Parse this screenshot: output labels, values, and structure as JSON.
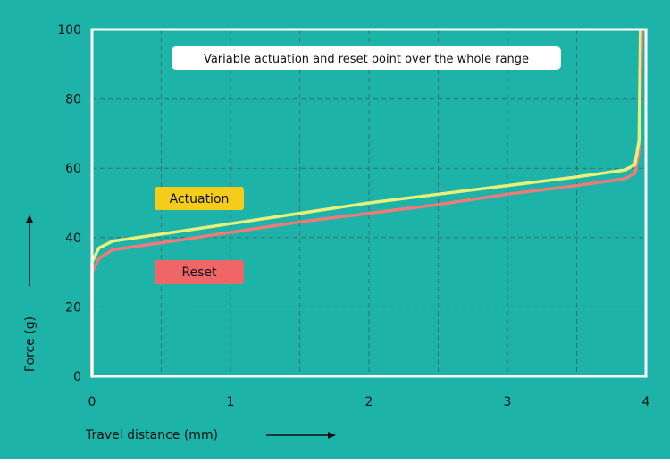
{
  "chart_data": {
    "type": "line",
    "title": "Variable actuation and reset point over the whole range",
    "xlabel": "Travel distance (mm)",
    "ylabel": "Force (g)",
    "xlim": [
      0,
      4
    ],
    "ylim": [
      0,
      100
    ],
    "xticks": [
      0,
      1,
      2,
      3,
      4
    ],
    "yticks": [
      0,
      20,
      40,
      60,
      80,
      100
    ],
    "grid": true,
    "series": [
      {
        "name": "Actuation",
        "color": "#e8f07a",
        "label_bg": "#f5cc1a",
        "points": [
          [
            0.0,
            0
          ],
          [
            0.0,
            33
          ],
          [
            0.05,
            37
          ],
          [
            0.15,
            39
          ],
          [
            0.5,
            41
          ],
          [
            1.0,
            44
          ],
          [
            1.5,
            47
          ],
          [
            2.0,
            50
          ],
          [
            2.5,
            52.5
          ],
          [
            3.0,
            55
          ],
          [
            3.5,
            57.5
          ],
          [
            3.85,
            59.5
          ],
          [
            3.92,
            61
          ],
          [
            3.95,
            68
          ],
          [
            3.96,
            100
          ]
        ]
      },
      {
        "name": "Reset",
        "color": "#f07a7a",
        "label_bg": "#f06666",
        "points": [
          [
            0.0,
            0
          ],
          [
            0.0,
            30
          ],
          [
            0.05,
            34
          ],
          [
            0.15,
            36.5
          ],
          [
            0.5,
            38.5
          ],
          [
            1.0,
            41.5
          ],
          [
            1.5,
            44.5
          ],
          [
            2.0,
            47
          ],
          [
            2.5,
            49.5
          ],
          [
            3.0,
            52.5
          ],
          [
            3.5,
            55
          ],
          [
            3.85,
            57
          ],
          [
            3.92,
            58.5
          ],
          [
            3.95,
            65
          ],
          [
            3.97,
            100
          ]
        ]
      }
    ]
  },
  "colors": {
    "background": "#1db3a8",
    "plot_border": "#ffffff",
    "gridline": "#3b6f6b",
    "text": "#111111",
    "title_bg": "#ffffff"
  }
}
